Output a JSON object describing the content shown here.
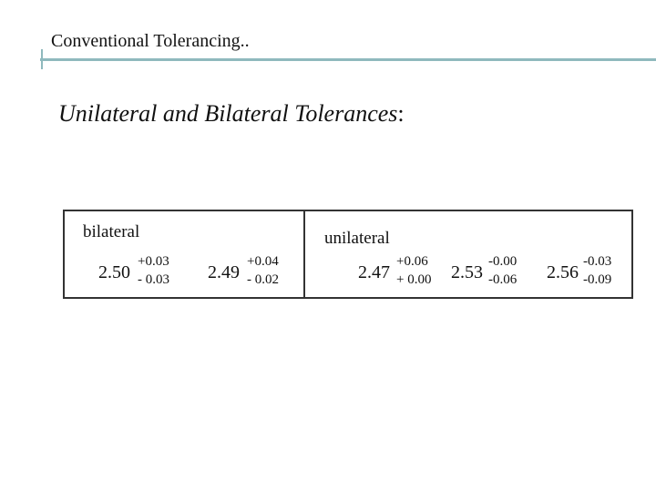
{
  "slide": {
    "title": "Conventional Tolerancing..",
    "subtitle": "Unilateral and Bilateral Tolerances",
    "subtitle_punct": ":"
  },
  "table": {
    "bilateral_label": "bilateral",
    "unilateral_label": "unilateral",
    "entries": [
      {
        "base": "2.50",
        "upper": "+0.03",
        "lower": "- 0.03"
      },
      {
        "base": "2.49",
        "upper": "+0.04",
        "lower": "- 0.02"
      },
      {
        "base": "2.47",
        "upper": "+0.06",
        "lower": "+ 0.00"
      },
      {
        "base": "2.53",
        "upper": "-0.00",
        "lower": "-0.06"
      },
      {
        "base": "2.56",
        "upper": "-0.03",
        "lower": "-0.09"
      }
    ]
  },
  "colors": {
    "accent_line": "#8fb9bd",
    "border": "#333333"
  }
}
